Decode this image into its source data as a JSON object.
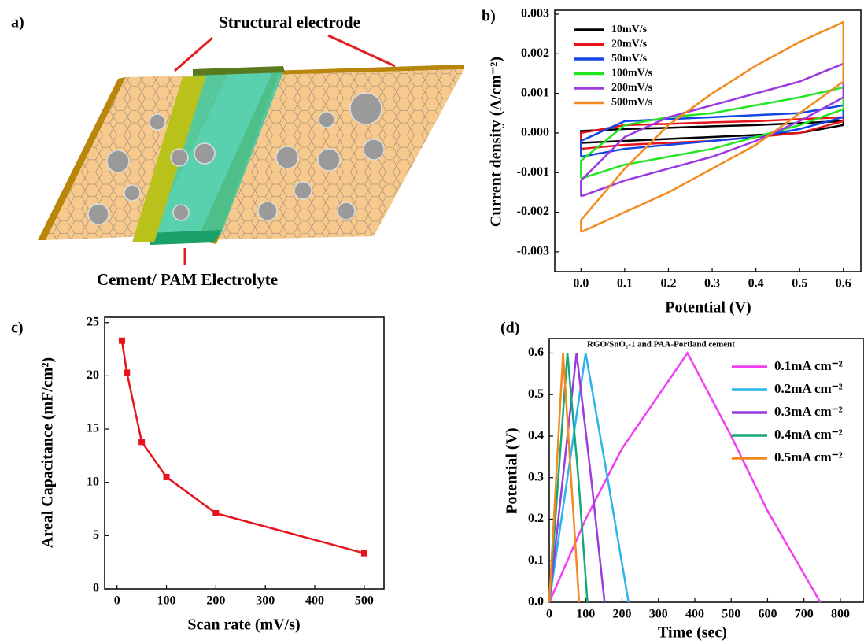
{
  "diagram": {
    "panel_label": "a)",
    "top_label": "Structural electrode",
    "bottom_label": "Cement/ PAM Electrolyte"
  },
  "chart_data": [
    {
      "type": "line",
      "panel_label": "b)",
      "x_label": "Potential (V)",
      "y_label": "Current density (A/cm⁻²)",
      "legend": "upper left",
      "x": [
        0,
        0,
        0.1,
        0.2,
        0.3,
        0.4,
        0.5,
        0.6,
        0.6,
        0.5,
        0.4,
        0.3,
        0.2,
        0.1,
        0
      ],
      "series": [
        {
          "name": "10mV/s",
          "color": "#000000",
          "values": [
            -0.00025,
            5e-05,
            0.0001,
            0.00013,
            0.00017,
            0.0002,
            0.00025,
            0.0003,
            0.0002,
            0.0,
            -5e-05,
            -0.0001,
            -0.00015,
            -0.0002,
            -0.00025
          ]
        },
        {
          "name": "20mV/s",
          "color": "#e8141c",
          "values": [
            -0.0004,
            0.0,
            0.0002,
            0.00023,
            0.00027,
            0.0003,
            0.00035,
            0.0004,
            0.0003,
            0.0,
            -0.0001,
            -0.0002,
            -0.00025,
            -0.0003,
            -0.0004
          ]
        },
        {
          "name": "50mV/s",
          "color": "#1446e6",
          "values": [
            -0.0006,
            -0.0002,
            0.0003,
            0.00035,
            0.0004,
            0.00045,
            0.0005,
            0.0007,
            0.0004,
            0.0001,
            -0.0001,
            -0.0002,
            -0.0003,
            -0.0004,
            -0.0006
          ]
        },
        {
          "name": "100mV/s",
          "color": "#22e622",
          "values": [
            -0.00115,
            -0.0007,
            0.0002,
            0.0004,
            0.0005,
            0.0007,
            0.0009,
            0.00115,
            0.0006,
            0.0002,
            -0.0001,
            -0.0004,
            -0.0006,
            -0.0008,
            -0.00115
          ]
        },
        {
          "name": "200mV/s",
          "color": "#9a3ae0",
          "values": [
            -0.0016,
            -0.0012,
            -0.0001,
            0.0004,
            0.0007,
            0.001,
            0.0013,
            0.00175,
            0.0009,
            0.0003,
            -0.0002,
            -0.0006,
            -0.0009,
            -0.0012,
            -0.0016
          ]
        },
        {
          "name": "500mV/s",
          "color": "#f28a1e",
          "values": [
            -0.0025,
            -0.0022,
            -0.0009,
            0.0002,
            0.001,
            0.0017,
            0.0023,
            0.0028,
            0.0013,
            0.0005,
            -0.0003,
            -0.0009,
            -0.0015,
            -0.002,
            -0.0025
          ]
        }
      ],
      "xlim": [
        -0.06,
        0.64
      ],
      "xticks": [
        {
          "value": 0,
          "label": "0.0"
        },
        0.1,
        0.2,
        0.3,
        0.4,
        0.5,
        0.6
      ],
      "ylim": [
        -0.0035,
        0.0031
      ],
      "yticks": [
        -0.003,
        -0.002,
        -0.001,
        {
          "value": 0,
          "label": "0.000"
        },
        0.001,
        0.002,
        0.003
      ]
    },
    {
      "type": "line",
      "panel_label": "c)",
      "x_label": "Scan rate (mV/s)",
      "y_label": "Areal Capacitance (mF/cm²)",
      "markers": "square",
      "x": [
        10,
        20,
        50,
        100,
        200,
        500
      ],
      "series": [
        {
          "color": "#e8141c",
          "values": [
            23.3,
            20.3,
            13.8,
            10.5,
            7.1,
            3.35
          ]
        }
      ],
      "xlim": [
        -25,
        540
      ],
      "xticks": [
        0,
        100,
        200,
        300,
        400,
        500
      ],
      "ylim": [
        0,
        25.5
      ],
      "yticks": [
        0,
        5,
        10,
        15,
        20,
        25
      ]
    },
    {
      "type": "line",
      "panel_label": "(d)",
      "x_label": "Time (sec)",
      "y_label": "Potential (V)",
      "legend": "upper right",
      "annotation": "RGO/SnO₂-1 and PAA-Portland cement",
      "series": [
        {
          "name": "0.1mA cm⁻²",
          "color": "#f23ef2",
          "x": [
            0,
            100,
            200,
            380,
            500,
            600,
            745
          ],
          "values": [
            0,
            0.2,
            0.37,
            0.6,
            0.4,
            0.22,
            0
          ]
        },
        {
          "name": "0.2mA cm⁻²",
          "color": "#2ab4ec",
          "x": [
            0,
            100,
            160,
            218
          ],
          "values": [
            0,
            0.6,
            0.3,
            0
          ]
        },
        {
          "name": "0.3mA cm⁻²",
          "color": "#9a3ae0",
          "x": [
            0,
            75,
            115,
            152
          ],
          "values": [
            0,
            0.6,
            0.3,
            0
          ]
        },
        {
          "name": "0.4mA cm⁻²",
          "color": "#16a878",
          "x": [
            0,
            50,
            80,
            105
          ],
          "values": [
            0,
            0.6,
            0.3,
            0
          ]
        },
        {
          "name": "0.5mA cm⁻²",
          "color": "#f28a1e",
          "x": [
            0,
            38,
            60,
            82
          ],
          "values": [
            0,
            0.6,
            0.3,
            0
          ]
        }
      ],
      "xlim": [
        0,
        865
      ],
      "xticks": [
        0,
        100,
        200,
        300,
        400,
        500,
        600,
        700,
        800
      ],
      "ylim": [
        0,
        0.635
      ],
      "yticks": [
        {
          "value": 0,
          "label": "0.0"
        },
        0.1,
        0.2,
        0.3,
        0.4,
        0.5,
        0.6
      ]
    }
  ]
}
